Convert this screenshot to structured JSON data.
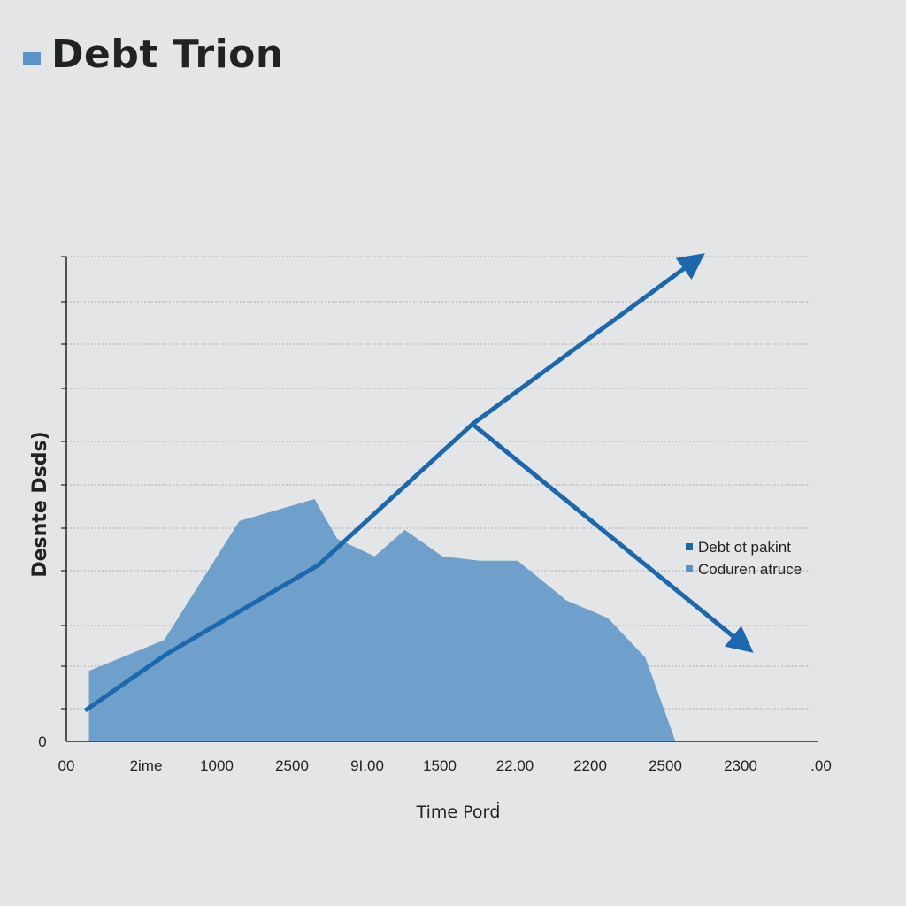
{
  "title": "Debt Trion",
  "colors": {
    "background": "#e4e5e7",
    "area_fill": "#6ea0cb",
    "line": "#1d68ad",
    "grid": "#a9abae",
    "axis": "#222222",
    "title_marker": "#5b93c7"
  },
  "chart_data": {
    "type": "area",
    "title": "Debt Trion",
    "xlabel": "Time Porḋ",
    "ylabel": "Desnte Dsds)",
    "x_tick_labels": [
      "00",
      "2ime",
      "1000",
      "2500",
      "9I.00",
      "1500",
      "22.00",
      "2200",
      "2500",
      "2300",
      ".00"
    ],
    "y_tick_labels": [
      "0"
    ],
    "x": [
      0.3,
      1.3,
      2.3,
      3.3,
      3.6,
      4.1,
      4.5,
      5.0,
      5.5,
      6.0,
      6.65,
      7.2,
      7.7,
      8.1,
      8.75
    ],
    "xlim": [
      0,
      10
    ],
    "ylim": [
      0,
      11
    ],
    "grid": true,
    "legend_position": "right",
    "series": [
      {
        "name": "Coduren atruce",
        "type": "area",
        "x": [
          0.3,
          1.3,
          2.3,
          3.3,
          3.6,
          4.1,
          4.5,
          5.0,
          5.5,
          6.0,
          6.65,
          7.2,
          7.7,
          8.1,
          8.75
        ],
        "values": [
          1.6,
          2.3,
          5.0,
          5.5,
          4.6,
          4.2,
          4.8,
          4.2,
          4.1,
          4.1,
          3.2,
          2.8,
          1.9,
          0.0,
          0.0
        ]
      },
      {
        "name": "Debt ot pakint",
        "type": "line",
        "x": [
          0.25,
          1.35,
          3.35,
          5.4,
          8.35
        ],
        "values": [
          0.7,
          2.0,
          4.0,
          7.2,
          10.9
        ]
      },
      {
        "name": "",
        "type": "line",
        "x": [
          5.4,
          9.0
        ],
        "values": [
          7.2,
          2.2
        ]
      }
    ]
  },
  "legend": [
    {
      "label": "Debt ot pakint",
      "color": "#1d68ad"
    },
    {
      "label": "Coduren atruce",
      "color": "#5b93c7"
    }
  ]
}
